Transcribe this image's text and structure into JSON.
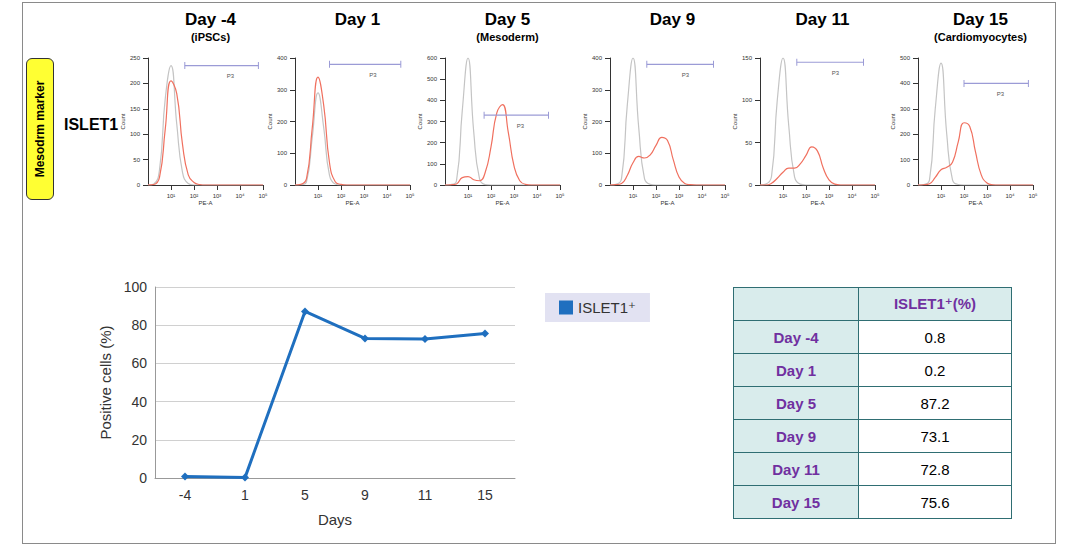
{
  "header": {
    "marker_label": "Mesodrm marker",
    "row_label": "ISLET1"
  },
  "chart_data": [
    {
      "type": "line",
      "title": "Day -4",
      "subtitle": "(iPSCs)",
      "xlabel": "PE-A",
      "ylabel": "Count",
      "x": [
        0,
        0.25,
        0.5,
        0.75,
        1,
        1.25,
        1.5,
        1.75,
        2,
        2.25,
        2.5,
        2.75,
        3,
        3.25,
        3.5,
        3.75,
        4,
        4.25,
        4.5,
        4.75,
        5
      ],
      "series": [
        {
          "color": "#c4c4c4",
          "values": [
            0,
            2,
            30,
            170,
            235,
            120,
            25,
            3,
            0,
            0,
            0,
            0,
            0,
            0,
            0,
            0,
            0,
            0,
            0,
            0,
            0
          ]
        },
        {
          "color": "#f0705f",
          "values": [
            0,
            1,
            15,
            110,
            205,
            180,
            80,
            20,
            5,
            1,
            0,
            0,
            0,
            0,
            0,
            0,
            0,
            0,
            0,
            0,
            0
          ]
        }
      ],
      "xlim": [
        0,
        5
      ],
      "xticks": [
        {
          "value": 1,
          "label": "10¹"
        },
        {
          "value": 2,
          "label": "10²"
        },
        {
          "value": 3,
          "label": "10³"
        },
        {
          "value": 4,
          "label": "10⁴"
        },
        {
          "value": 5,
          "label": "10⁵"
        }
      ],
      "ylim": [
        0,
        250
      ],
      "yticks": [
        0,
        50,
        100,
        150,
        200,
        250
      ],
      "gate": {
        "label": "P3",
        "range": [
          1.6,
          4.8
        ],
        "level": 235
      },
      "grid": false,
      "marker": "none"
    },
    {
      "type": "line",
      "title": "Day 1",
      "xlabel": "PE-A",
      "ylabel": "Count",
      "x": [
        0,
        0.25,
        0.5,
        0.75,
        1,
        1.25,
        1.5,
        1.75,
        2,
        2.25,
        2.5,
        2.75,
        3,
        3.25,
        3.5,
        3.75,
        4,
        4.25,
        4.5,
        4.75,
        5
      ],
      "series": [
        {
          "color": "#c4c4c4",
          "values": [
            0,
            1,
            10,
            150,
            290,
            180,
            30,
            3,
            0,
            0,
            0,
            0,
            0,
            0,
            0,
            0,
            0,
            0,
            0,
            0,
            0
          ]
        },
        {
          "color": "#f0705f",
          "values": [
            0,
            2,
            20,
            180,
            340,
            250,
            70,
            10,
            2,
            0,
            0,
            0,
            0,
            0,
            0,
            0,
            0,
            0,
            0,
            0,
            0
          ]
        }
      ],
      "xlim": [
        0,
        5
      ],
      "xticks": [
        {
          "value": 1,
          "label": "10¹"
        },
        {
          "value": 2,
          "label": "10²"
        },
        {
          "value": 3,
          "label": "10³"
        },
        {
          "value": 4,
          "label": "10⁴"
        },
        {
          "value": 5,
          "label": "10⁵"
        }
      ],
      "ylim": [
        0,
        400
      ],
      "yticks": [
        0,
        100,
        200,
        300,
        400
      ],
      "gate": {
        "label": "P3",
        "range": [
          1.5,
          4.6
        ],
        "level": 380
      },
      "grid": false,
      "marker": "none"
    },
    {
      "type": "line",
      "title": "Day 5",
      "subtitle": "(Mesoderm)",
      "xlabel": "PE-A",
      "ylabel": "Count",
      "x": [
        0,
        0.25,
        0.5,
        0.75,
        1,
        1.25,
        1.5,
        1.75,
        2,
        2.25,
        2.5,
        2.75,
        3,
        3.25,
        3.5,
        3.75,
        4,
        4.25,
        4.5,
        4.75,
        5
      ],
      "series": [
        {
          "color": "#c4c4c4",
          "values": [
            0,
            2,
            20,
            350,
            600,
            250,
            30,
            2,
            0,
            0,
            0,
            0,
            0,
            0,
            0,
            0,
            0,
            0,
            0,
            0,
            0
          ]
        },
        {
          "color": "#f0705f",
          "values": [
            0,
            1,
            5,
            35,
            40,
            25,
            20,
            60,
            180,
            340,
            380,
            250,
            90,
            20,
            3,
            0,
            0,
            0,
            0,
            0,
            0
          ]
        }
      ],
      "xlim": [
        0,
        5
      ],
      "xticks": [
        {
          "value": 1,
          "label": "10¹"
        },
        {
          "value": 2,
          "label": "10²"
        },
        {
          "value": 3,
          "label": "10³"
        },
        {
          "value": 4,
          "label": "10⁴"
        },
        {
          "value": 5,
          "label": "10⁵"
        }
      ],
      "ylim": [
        0,
        600
      ],
      "yticks": [
        0,
        100,
        200,
        300,
        400,
        500,
        600
      ],
      "gate": {
        "label": "P3",
        "range": [
          1.7,
          4.5
        ],
        "level": 330
      },
      "grid": false,
      "marker": "none"
    },
    {
      "type": "line",
      "title": "Day 9",
      "xlabel": "PE-A",
      "ylabel": "Count",
      "x": [
        0,
        0.25,
        0.5,
        0.75,
        1,
        1.25,
        1.5,
        1.75,
        2,
        2.25,
        2.5,
        2.75,
        3,
        3.25,
        3.5,
        3.75,
        4,
        4.25,
        4.5,
        4.75,
        5
      ],
      "series": [
        {
          "color": "#c4c4c4",
          "values": [
            0,
            2,
            20,
            250,
            400,
            180,
            20,
            2,
            0,
            0,
            0,
            0,
            0,
            0,
            0,
            0,
            0,
            0,
            0,
            0,
            0
          ]
        },
        {
          "color": "#f0705f",
          "values": [
            0,
            1,
            5,
            30,
            70,
            90,
            85,
            95,
            125,
            150,
            140,
            80,
            25,
            5,
            1,
            0,
            0,
            0,
            0,
            0,
            0
          ]
        }
      ],
      "xlim": [
        0,
        5
      ],
      "xticks": [
        {
          "value": 1,
          "label": "10¹"
        },
        {
          "value": 2,
          "label": "10²"
        },
        {
          "value": 3,
          "label": "10³"
        },
        {
          "value": 4,
          "label": "10⁴"
        },
        {
          "value": 5,
          "label": "10⁵"
        }
      ],
      "ylim": [
        0,
        400
      ],
      "yticks": [
        0,
        100,
        200,
        300,
        400
      ],
      "gate": {
        "label": "P3",
        "range": [
          1.6,
          4.5
        ],
        "level": 380
      },
      "grid": false,
      "marker": "none"
    },
    {
      "type": "line",
      "title": "Day 11",
      "xlabel": "PE-A",
      "ylabel": "Count",
      "x": [
        0,
        0.25,
        0.5,
        0.75,
        1,
        1.25,
        1.5,
        1.75,
        2,
        2.25,
        2.5,
        2.75,
        3,
        3.25,
        3.5,
        3.75,
        4,
        4.25,
        4.5,
        4.75,
        5
      ],
      "series": [
        {
          "color": "#c4c4c4",
          "values": [
            0,
            1,
            10,
            100,
            150,
            70,
            10,
            1,
            0,
            0,
            0,
            0,
            0,
            0,
            0,
            0,
            0,
            0,
            0,
            0,
            0
          ]
        },
        {
          "color": "#f0705f",
          "values": [
            0,
            0,
            2,
            8,
            15,
            20,
            20,
            25,
            35,
            45,
            40,
            20,
            6,
            1,
            0,
            0,
            0,
            0,
            0,
            0,
            0
          ]
        }
      ],
      "xlim": [
        0,
        5
      ],
      "xticks": [
        {
          "value": 1,
          "label": "10¹"
        },
        {
          "value": 2,
          "label": "10²"
        },
        {
          "value": 3,
          "label": "10³"
        },
        {
          "value": 4,
          "label": "10⁴"
        },
        {
          "value": 5,
          "label": "10⁵"
        }
      ],
      "ylim": [
        0,
        150
      ],
      "yticks": [
        0,
        50,
        100,
        150
      ],
      "gate": {
        "label": "P3",
        "range": [
          1.6,
          4.5
        ],
        "level": 145
      },
      "grid": false,
      "marker": "none"
    },
    {
      "type": "line",
      "title": "Day 15",
      "subtitle": "(Cardiomyocytes)",
      "xlabel": "PE-A",
      "ylabel": "Count",
      "x": [
        0,
        0.25,
        0.5,
        0.75,
        1,
        1.25,
        1.5,
        1.75,
        2,
        2.25,
        2.5,
        2.75,
        3,
        3.25,
        3.5,
        3.75,
        4,
        4.25,
        4.5,
        4.75,
        5
      ],
      "series": [
        {
          "color": "#c4c4c4",
          "values": [
            0,
            2,
            20,
            300,
            480,
            200,
            20,
            2,
            0,
            0,
            0,
            0,
            0,
            0,
            0,
            0,
            0,
            0,
            0,
            0,
            0
          ]
        },
        {
          "color": "#f0705f",
          "values": [
            0,
            1,
            5,
            30,
            60,
            70,
            90,
            170,
            245,
            230,
            130,
            40,
            8,
            1,
            0,
            0,
            0,
            0,
            0,
            0,
            0
          ]
        }
      ],
      "xlim": [
        0,
        5
      ],
      "xticks": [
        {
          "value": 1,
          "label": "10¹"
        },
        {
          "value": 2,
          "label": "10²"
        },
        {
          "value": 3,
          "label": "10³"
        },
        {
          "value": 4,
          "label": "10⁴"
        },
        {
          "value": 5,
          "label": "10⁵"
        }
      ],
      "ylim": [
        0,
        500
      ],
      "yticks": [
        0,
        100,
        200,
        300,
        400,
        500
      ],
      "gate": {
        "label": "P3",
        "range": [
          2.0,
          4.8
        ],
        "level": 400
      },
      "grid": false,
      "marker": "none"
    },
    {
      "type": "line",
      "xlabel": "Days",
      "ylabel": "Positive cells (%)",
      "categories": [
        "-4",
        "1",
        "5",
        "9",
        "11",
        "15"
      ],
      "series": [
        {
          "name": "ISLET1⁺",
          "color": "#1f6fbf",
          "values": [
            0.8,
            0.2,
            87.2,
            73.1,
            72.8,
            75.6
          ]
        }
      ],
      "ylim": [
        0,
        100
      ],
      "yticks": [
        0,
        20,
        40,
        60,
        80,
        100
      ],
      "grid": true,
      "legend": "right",
      "marker": "diamond"
    }
  ],
  "table": {
    "column_header": "ISLET1⁺(%)",
    "rows": [
      [
        "Day -4",
        0.8
      ],
      [
        "Day 1",
        0.2
      ],
      [
        "Day 5",
        87.2
      ],
      [
        "Day 9",
        73.1
      ],
      [
        "Day 11",
        72.8
      ],
      [
        "Day 15",
        75.6
      ]
    ]
  }
}
